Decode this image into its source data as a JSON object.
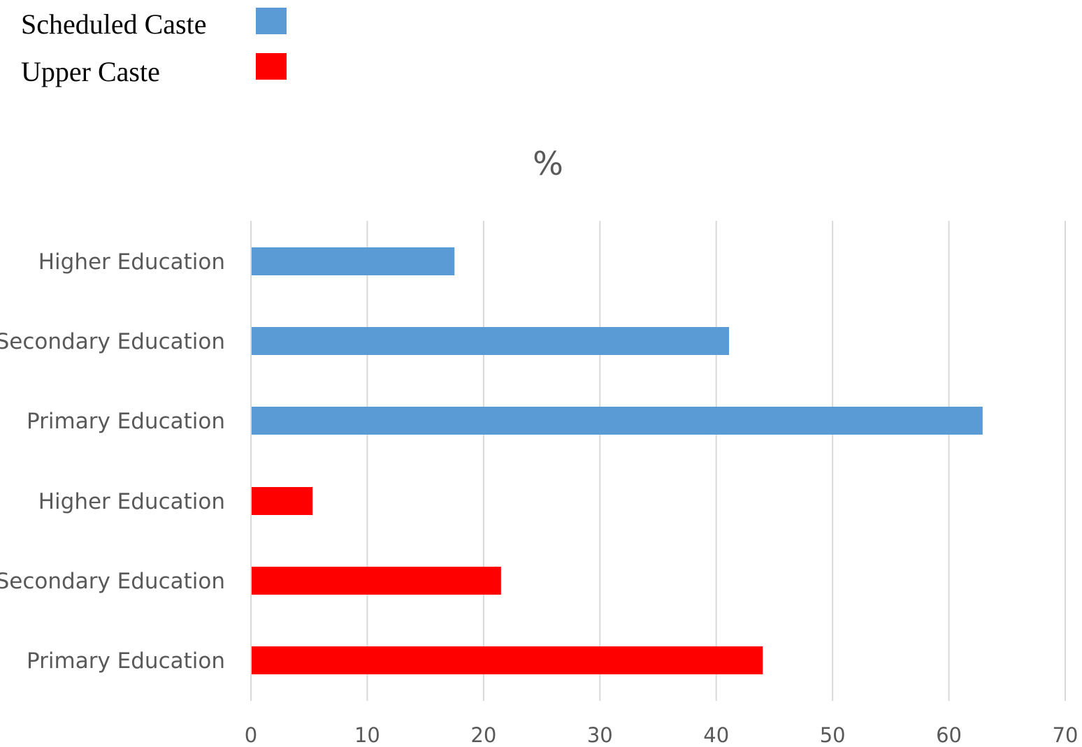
{
  "legend": {
    "items": [
      {
        "label": "Scheduled Caste",
        "color": "#5b9bd5"
      },
      {
        "label": "Upper Caste",
        "color": "#ff0000"
      }
    ]
  },
  "chart_data": {
    "type": "bar",
    "orientation": "horizontal",
    "title": "%",
    "xlabel": "",
    "ylabel": "",
    "xlim": [
      0,
      70
    ],
    "xticks": [
      "0",
      "10",
      "20",
      "30",
      "40",
      "50",
      "60",
      "70"
    ],
    "grid": true,
    "legend_position": "top-left",
    "series": [
      {
        "name": "Scheduled Caste",
        "color": "#5b9bd5",
        "categories": [
          "Higher Education",
          "Secondary Education",
          "Primary Education"
        ],
        "values": [
          17.5,
          41.1,
          62.9
        ]
      },
      {
        "name": "Upper Caste",
        "color": "#ff0000",
        "categories": [
          "Higher Education",
          "Secondary Education",
          "Primary Education"
        ],
        "values": [
          5.3,
          21.5,
          44.0
        ]
      }
    ]
  }
}
